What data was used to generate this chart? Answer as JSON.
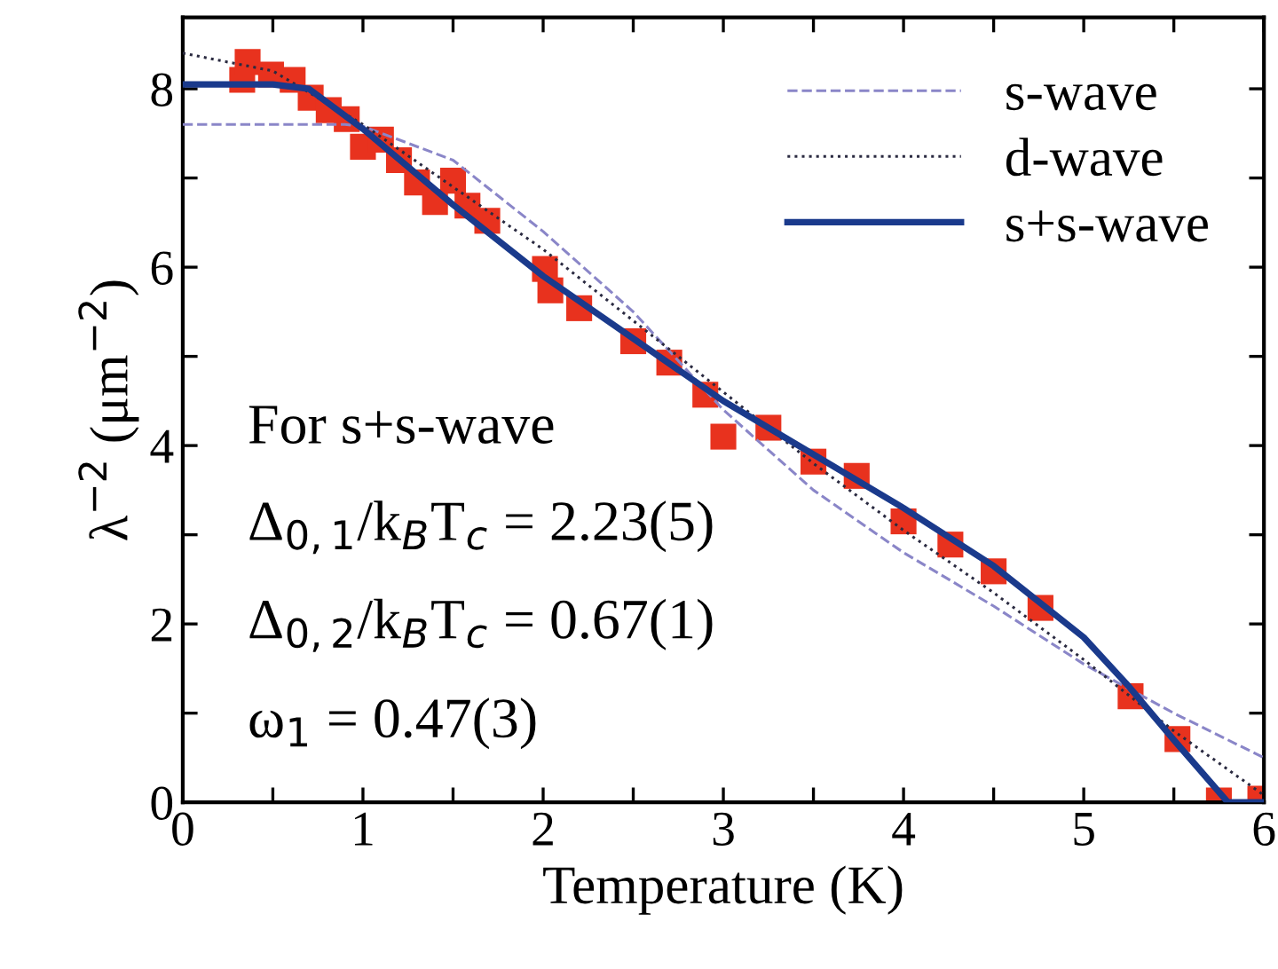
{
  "chart_data": {
    "type": "line",
    "xlabel": "Temperature (K)",
    "ylabel": "λ$^{−2}$ (μm$^{−2}$)",
    "xlim": [
      0,
      6
    ],
    "ylim": [
      0,
      8.8
    ],
    "xticks": [
      0,
      {
        "value": 0.5,
        "label": null
      },
      1,
      {
        "value": 1.5,
        "label": null
      },
      2,
      {
        "value": 2.5,
        "label": null
      },
      3,
      {
        "value": 3.5,
        "label": null
      },
      4,
      {
        "value": 4.5,
        "label": null
      },
      5,
      {
        "value": 5.5,
        "label": null
      },
      6
    ],
    "yticks": [
      0,
      {
        "value": 1,
        "label": null
      },
      2,
      {
        "value": 3,
        "label": null
      },
      4,
      {
        "value": 5,
        "label": null
      },
      6,
      {
        "value": 7,
        "label": null
      },
      8
    ],
    "grid": false,
    "legend": "top right",
    "annotations": [
      "For s+s-wave",
      "Δ$_{0,1}$/k$_{B}$T$_{c}$ = 2.23(5)",
      "Δ$_{0,2}$/k$_{B}$T$_{c}$ = 0.67(1)",
      "ω$_{1}$ = 0.47(3)"
    ],
    "series": [
      {
        "type": "scatter",
        "marker": "square",
        "color": "#e8321e",
        "x": [
          0.33,
          0.36,
          0.49,
          0.61,
          0.71,
          0.81,
          0.91,
          1.0,
          1.1,
          1.2,
          1.3,
          1.4,
          1.5,
          1.58,
          1.69,
          2.01,
          2.04,
          2.2,
          2.5,
          2.7,
          2.9,
          3.0,
          3.25,
          3.5,
          3.74,
          4.0,
          4.26,
          4.5,
          4.76,
          5.26,
          5.52,
          5.75,
          5.98
        ],
        "values": [
          8.1,
          8.3,
          8.16,
          8.1,
          7.9,
          7.76,
          7.66,
          7.35,
          7.43,
          7.2,
          6.95,
          6.73,
          6.97,
          6.69,
          6.52,
          5.98,
          5.74,
          5.54,
          5.17,
          4.93,
          4.57,
          4.1,
          4.2,
          3.82,
          3.66,
          3.15,
          2.89,
          2.59,
          2.18,
          1.19,
          0.71,
          0.02,
          0.04
        ]
      },
      {
        "name": "s-wave",
        "line_style": "dashed",
        "color": "#8a86c8",
        "x": [
          0,
          0.5,
          0.9,
          1.0,
          1.5,
          2.0,
          2.5,
          3.0,
          3.5,
          4.0,
          4.5,
          5.0,
          5.5,
          6.0
        ],
        "values": [
          7.6,
          7.6,
          7.6,
          7.58,
          7.2,
          6.4,
          5.5,
          4.4,
          3.5,
          2.8,
          2.2,
          1.55,
          1.0,
          0.5
        ]
      },
      {
        "name": "d-wave",
        "line_style": "dotted",
        "color": "#2a2a40",
        "x": [
          0,
          0.5,
          1.0,
          1.5,
          2.0,
          2.5,
          3.0,
          3.5,
          4.0,
          4.5,
          5.0,
          5.5,
          6.0
        ],
        "values": [
          8.4,
          8.2,
          7.6,
          6.9,
          6.2,
          5.4,
          4.6,
          3.8,
          3.05,
          2.35,
          1.6,
          0.8,
          0.08
        ]
      },
      {
        "name": "s+s-wave",
        "line_style": "solid",
        "color": "#1a3a8c",
        "x": [
          0,
          0.5,
          0.7,
          1.0,
          1.5,
          2.0,
          2.5,
          3.0,
          3.5,
          4.0,
          4.5,
          5.0,
          5.25,
          5.5,
          5.8,
          6.0
        ],
        "values": [
          8.05,
          8.05,
          8.0,
          7.55,
          6.7,
          5.9,
          5.2,
          4.5,
          3.9,
          3.3,
          2.65,
          1.85,
          1.3,
          0.7,
          0,
          0
        ]
      }
    ]
  }
}
